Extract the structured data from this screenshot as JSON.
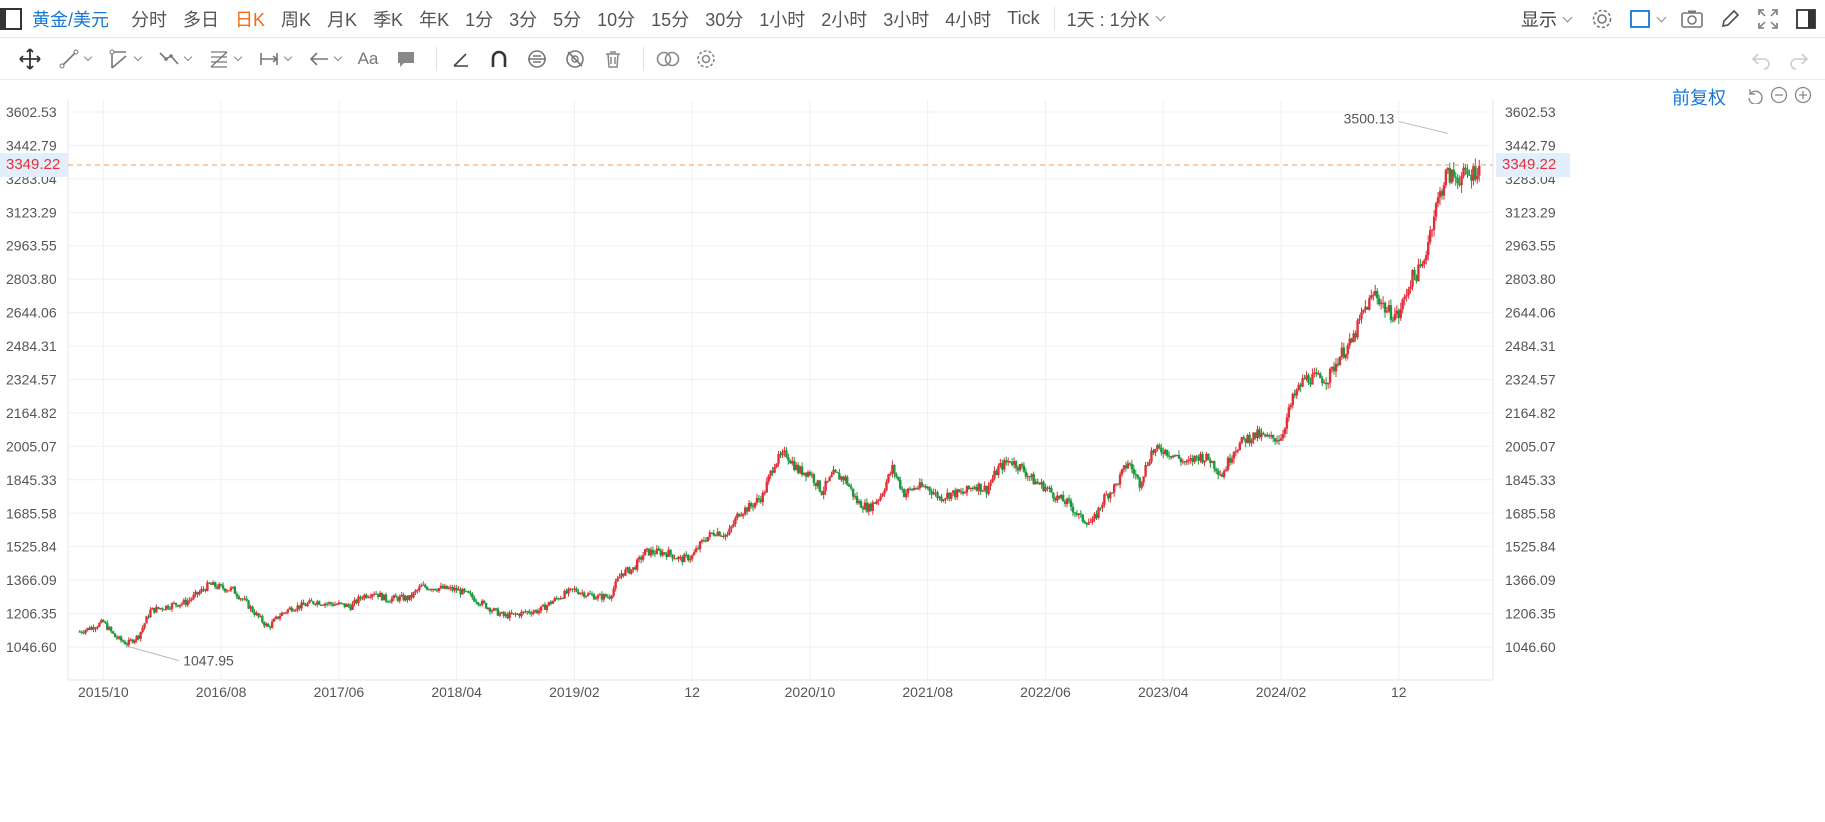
{
  "toolbar": {
    "symbol": "黄金/美元",
    "periods": [
      "分时",
      "多日",
      "日K",
      "周K",
      "月K",
      "季K",
      "年K",
      "1分",
      "3分",
      "5分",
      "10分",
      "15分",
      "30分",
      "1小时",
      "2小时",
      "3小时",
      "4小时",
      "Tick"
    ],
    "active_period": "日K",
    "combo_label": "1天 : 1分K",
    "display_label": "显示"
  },
  "adjust_label": "前复权",
  "colors": {
    "up": "#e0303a",
    "down": "#1a9a3c",
    "accent": "#1677d2",
    "active": "#f36a12",
    "last_line": "#f0a060"
  },
  "chart_data": {
    "type": "candlestick",
    "title": "",
    "x_ticks": [
      "2015/10",
      "2016/08",
      "2017/06",
      "2018/04",
      "2019/02",
      "12",
      "2020/10",
      "2021/08",
      "2022/06",
      "2023/04",
      "2024/02",
      "12"
    ],
    "y_ticks": [
      3602.53,
      3442.79,
      3283.04,
      3123.29,
      2963.55,
      2803.8,
      2644.06,
      2484.31,
      2324.57,
      2164.82,
      2005.07,
      1845.33,
      1685.58,
      1525.84,
      1366.09,
      1206.35,
      1046.6
    ],
    "y_range": [
      1046.6,
      3602.53
    ],
    "grid": true,
    "last_price": 3349.22,
    "max_label": 3500.13,
    "min_label": 1047.95,
    "series": [
      {
        "values": [
          [
            "2015-08",
            1120
          ],
          [
            "2015-09",
            1140
          ],
          [
            "2015-10",
            1165
          ],
          [
            "2015-11",
            1095
          ],
          [
            "2015-12",
            1062
          ],
          [
            "2016-01",
            1100
          ],
          [
            "2016-02",
            1220
          ],
          [
            "2016-03",
            1235
          ],
          [
            "2016-04",
            1250
          ],
          [
            "2016-05",
            1260
          ],
          [
            "2016-06",
            1300
          ],
          [
            "2016-07",
            1345
          ],
          [
            "2016-08",
            1330
          ],
          [
            "2016-09",
            1320
          ],
          [
            "2016-10",
            1265
          ],
          [
            "2016-11",
            1200
          ],
          [
            "2016-12",
            1140
          ],
          [
            "2017-01",
            1200
          ],
          [
            "2017-02",
            1235
          ],
          [
            "2017-03",
            1245
          ],
          [
            "2017-04",
            1265
          ],
          [
            "2017-05",
            1255
          ],
          [
            "2017-06",
            1250
          ],
          [
            "2017-07",
            1240
          ],
          [
            "2017-08",
            1290
          ],
          [
            "2017-09",
            1310
          ],
          [
            "2017-10",
            1275
          ],
          [
            "2017-11",
            1280
          ],
          [
            "2017-12",
            1280
          ],
          [
            "2018-01",
            1335
          ],
          [
            "2018-02",
            1330
          ],
          [
            "2018-03",
            1325
          ],
          [
            "2018-04",
            1320
          ],
          [
            "2018-05",
            1295
          ],
          [
            "2018-06",
            1260
          ],
          [
            "2018-07",
            1225
          ],
          [
            "2018-08",
            1195
          ],
          [
            "2018-09",
            1200
          ],
          [
            "2018-10",
            1215
          ],
          [
            "2018-11",
            1220
          ],
          [
            "2018-12",
            1260
          ],
          [
            "2019-01",
            1295
          ],
          [
            "2019-02",
            1320
          ],
          [
            "2019-03",
            1300
          ],
          [
            "2019-04",
            1285
          ],
          [
            "2019-05",
            1290
          ],
          [
            "2019-06",
            1400
          ],
          [
            "2019-07",
            1420
          ],
          [
            "2019-08",
            1500
          ],
          [
            "2019-09",
            1500
          ],
          [
            "2019-10",
            1495
          ],
          [
            "2019-11",
            1465
          ],
          [
            "2019-12",
            1480
          ],
          [
            "2020-01",
            1560
          ],
          [
            "2020-02",
            1600
          ],
          [
            "2020-03",
            1580
          ],
          [
            "2020-04",
            1690
          ],
          [
            "2020-05",
            1720
          ],
          [
            "2020-06",
            1770
          ],
          [
            "2020-07",
            1930
          ],
          [
            "2020-08",
            1970
          ],
          [
            "2020-09",
            1890
          ],
          [
            "2020-10",
            1880
          ],
          [
            "2020-11",
            1790
          ],
          [
            "2020-12",
            1870
          ],
          [
            "2021-01",
            1850
          ],
          [
            "2021-02",
            1740
          ],
          [
            "2021-03",
            1710
          ],
          [
            "2021-04",
            1770
          ],
          [
            "2021-05",
            1900
          ],
          [
            "2021-06",
            1780
          ],
          [
            "2021-07",
            1810
          ],
          [
            "2021-08",
            1810
          ],
          [
            "2021-09",
            1760
          ],
          [
            "2021-10",
            1780
          ],
          [
            "2021-11",
            1780
          ],
          [
            "2021-12",
            1820
          ],
          [
            "2022-01",
            1800
          ],
          [
            "2022-02",
            1900
          ],
          [
            "2022-03",
            1940
          ],
          [
            "2022-04",
            1900
          ],
          [
            "2022-05",
            1840
          ],
          [
            "2022-06",
            1810
          ],
          [
            "2022-07",
            1760
          ],
          [
            "2022-08",
            1730
          ],
          [
            "2022-09",
            1660
          ],
          [
            "2022-10",
            1640
          ],
          [
            "2022-11",
            1760
          ],
          [
            "2022-12",
            1820
          ],
          [
            "2023-01",
            1930
          ],
          [
            "2023-02",
            1830
          ],
          [
            "2023-03",
            1980
          ],
          [
            "2023-04",
            1990
          ],
          [
            "2023-05",
            1960
          ],
          [
            "2023-06",
            1920
          ],
          [
            "2023-07",
            1960
          ],
          [
            "2023-08",
            1940
          ],
          [
            "2023-09",
            1870
          ],
          [
            "2023-10",
            1990
          ],
          [
            "2023-11",
            2040
          ],
          [
            "2023-12",
            2060
          ],
          [
            "2024-01",
            2040
          ],
          [
            "2024-02",
            2050
          ],
          [
            "2024-03",
            2230
          ],
          [
            "2024-04",
            2330
          ],
          [
            "2024-05",
            2330
          ],
          [
            "2024-06",
            2330
          ],
          [
            "2024-07",
            2440
          ],
          [
            "2024-08",
            2500
          ],
          [
            "2024-09",
            2650
          ],
          [
            "2024-10",
            2740
          ],
          [
            "2024-11",
            2650
          ],
          [
            "2024-12",
            2630
          ],
          [
            "2025-01",
            2800
          ],
          [
            "2025-02",
            2860
          ],
          [
            "2025-03",
            3120
          ],
          [
            "2025-04",
            3300
          ],
          [
            "2025-05",
            3290
          ],
          [
            "2025-06",
            3300
          ],
          [
            "2025-07",
            3349.22
          ]
        ]
      }
    ]
  }
}
